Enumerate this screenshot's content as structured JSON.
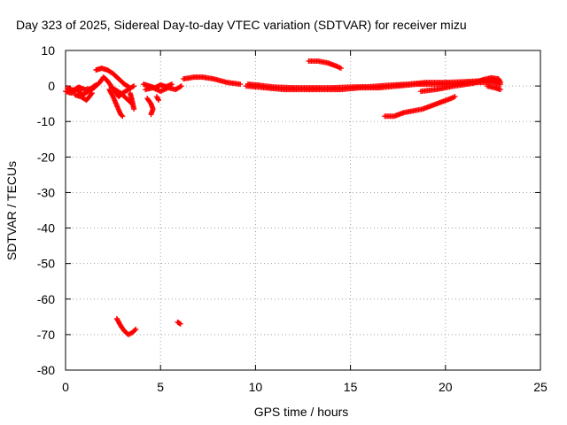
{
  "chart_data": {
    "type": "scatter",
    "title": "Day 323 of 2025, Sidereal Day-to-day VTEC variation (SDTVAR) for receiver mizu",
    "xlabel": "GPS time / hours",
    "ylabel": "SDTVAR / TECUs",
    "xlim": [
      0,
      25
    ],
    "ylim": [
      -80,
      10
    ],
    "xticks": [
      0,
      5,
      10,
      15,
      20,
      25
    ],
    "yticks": [
      10,
      0,
      -10,
      -20,
      -30,
      -40,
      -50,
      -60,
      -70,
      -80
    ],
    "xtick_labels": [
      "0",
      "5",
      "10",
      "15",
      "20",
      "25"
    ],
    "ytick_labels": [
      "10",
      "0",
      "-10",
      "-20",
      "-30",
      "-40",
      "-50",
      "-60",
      "-70",
      "-80"
    ],
    "grid": true,
    "marker": "+",
    "color": "#ff0000",
    "series": [
      {
        "name": "SDTVAR",
        "segments": [
          [
            [
              0.0,
              -1.5
            ],
            [
              0.3,
              -2.0
            ],
            [
              0.6,
              -1.0
            ],
            [
              0.9,
              -2.5
            ],
            [
              1.2,
              -1.5
            ],
            [
              1.5,
              -0.5
            ],
            [
              1.8,
              1.0
            ],
            [
              2.0,
              2.5
            ],
            [
              2.2,
              1.5
            ],
            [
              2.4,
              0.0
            ],
            [
              2.6,
              -1.5
            ],
            [
              2.8,
              -3.0
            ],
            [
              3.0,
              -2.0
            ],
            [
              3.3,
              -1.0
            ],
            [
              3.6,
              0.0
            ]
          ],
          [
            [
              0.1,
              -0.5
            ],
            [
              0.4,
              -1.2
            ],
            [
              0.7,
              -0.3
            ],
            [
              1.0,
              -1.0
            ],
            [
              1.3,
              -0.8
            ],
            [
              1.6,
              0.3
            ]
          ],
          [
            [
              0.5,
              -2.5
            ],
            [
              0.8,
              -3.0
            ],
            [
              1.1,
              -4.0
            ],
            [
              1.4,
              -2.0
            ]
          ],
          [
            [
              1.6,
              4.5
            ],
            [
              1.9,
              5.0
            ],
            [
              2.2,
              4.5
            ],
            [
              2.5,
              3.5
            ],
            [
              2.8,
              2.0
            ],
            [
              3.1,
              0.5
            ],
            [
              3.4,
              -0.5
            ]
          ],
          [
            [
              2.3,
              -1.0
            ],
            [
              2.5,
              -3.0
            ],
            [
              2.7,
              -5.5
            ],
            [
              2.9,
              -8.0
            ],
            [
              3.0,
              -8.5
            ]
          ],
          [
            [
              2.6,
              -1.0
            ],
            [
              2.9,
              -2.0
            ],
            [
              3.2,
              -3.5
            ],
            [
              3.5,
              -5.0
            ]
          ],
          [
            [
              3.4,
              -2.0
            ],
            [
              3.5,
              -4.0
            ],
            [
              3.6,
              -6.5
            ]
          ],
          [
            [
              4.2,
              -1.0
            ],
            [
              4.6,
              -0.5
            ],
            [
              5.0,
              -1.5
            ],
            [
              5.4,
              -0.5
            ],
            [
              5.8,
              -1.0
            ],
            [
              6.1,
              0.0
            ]
          ],
          [
            [
              4.1,
              0.5
            ],
            [
              4.4,
              0.0
            ],
            [
              4.7,
              -0.5
            ],
            [
              5.0,
              0.3
            ],
            [
              5.3,
              -0.2
            ],
            [
              5.6,
              0.5
            ]
          ],
          [
            [
              4.3,
              -3.5
            ],
            [
              4.5,
              -5.0
            ],
            [
              4.6,
              -6.5
            ],
            [
              4.5,
              -8.0
            ]
          ],
          [
            [
              4.8,
              -3.0
            ],
            [
              4.9,
              -4.0
            ]
          ],
          [
            [
              6.2,
              2.0
            ],
            [
              6.8,
              2.5
            ],
            [
              7.2,
              2.5
            ],
            [
              7.8,
              2.0
            ],
            [
              8.5,
              1.0
            ],
            [
              9.2,
              0.5
            ]
          ],
          [
            [
              9.5,
              0.0
            ],
            [
              10.5,
              -0.5
            ],
            [
              11.5,
              -1.0
            ],
            [
              12.5,
              -1.0
            ],
            [
              13.5,
              -1.0
            ],
            [
              14.5,
              -1.0
            ],
            [
              15.5,
              -0.5
            ],
            [
              16.5,
              -0.5
            ],
            [
              17.5,
              0.0
            ],
            [
              18.5,
              0.5
            ],
            [
              19.5,
              0.5
            ],
            [
              20.5,
              0.5
            ],
            [
              21.5,
              1.0
            ],
            [
              22.5,
              1.0
            ],
            [
              22.9,
              0.5
            ]
          ],
          [
            [
              9.6,
              0.5
            ],
            [
              10.2,
              0.2
            ],
            [
              11.0,
              -0.3
            ],
            [
              12.0,
              -0.5
            ],
            [
              13.0,
              -0.5
            ],
            [
              14.0,
              -0.5
            ],
            [
              15.0,
              -0.3
            ],
            [
              16.0,
              -0.2
            ],
            [
              17.0,
              0.2
            ],
            [
              18.0,
              0.5
            ],
            [
              19.0,
              1.0
            ],
            [
              20.0,
              1.0
            ],
            [
              21.0,
              1.2
            ],
            [
              22.0,
              1.5
            ],
            [
              22.7,
              1.5
            ]
          ],
          [
            [
              18.7,
              -1.5
            ],
            [
              19.5,
              -1.0
            ],
            [
              20.5,
              0.0
            ],
            [
              21.5,
              0.8
            ],
            [
              22.0,
              1.8
            ],
            [
              22.4,
              2.3
            ],
            [
              22.8,
              2.0
            ],
            [
              22.9,
              1.0
            ]
          ],
          [
            [
              22.2,
              0.0
            ],
            [
              22.6,
              -0.5
            ],
            [
              22.9,
              -1.0
            ]
          ],
          [
            [
              12.8,
              7.0
            ],
            [
              13.3,
              7.0
            ],
            [
              13.8,
              6.5
            ],
            [
              14.3,
              5.5
            ],
            [
              14.5,
              5.0
            ]
          ],
          [
            [
              16.8,
              -8.5
            ],
            [
              17.3,
              -8.5
            ],
            [
              17.8,
              -7.5
            ],
            [
              18.3,
              -7.0
            ],
            [
              18.8,
              -6.5
            ],
            [
              19.3,
              -5.5
            ],
            [
              19.8,
              -4.5
            ],
            [
              20.3,
              -3.5
            ],
            [
              20.5,
              -3.0
            ]
          ],
          [
            [
              2.7,
              -65.5
            ],
            [
              2.9,
              -67.5
            ],
            [
              3.1,
              -69.0
            ],
            [
              3.3,
              -70.0
            ],
            [
              3.5,
              -69.5
            ],
            [
              3.7,
              -68.5
            ]
          ],
          [
            [
              5.9,
              -66.5
            ],
            [
              6.05,
              -67.0
            ]
          ]
        ]
      }
    ]
  }
}
